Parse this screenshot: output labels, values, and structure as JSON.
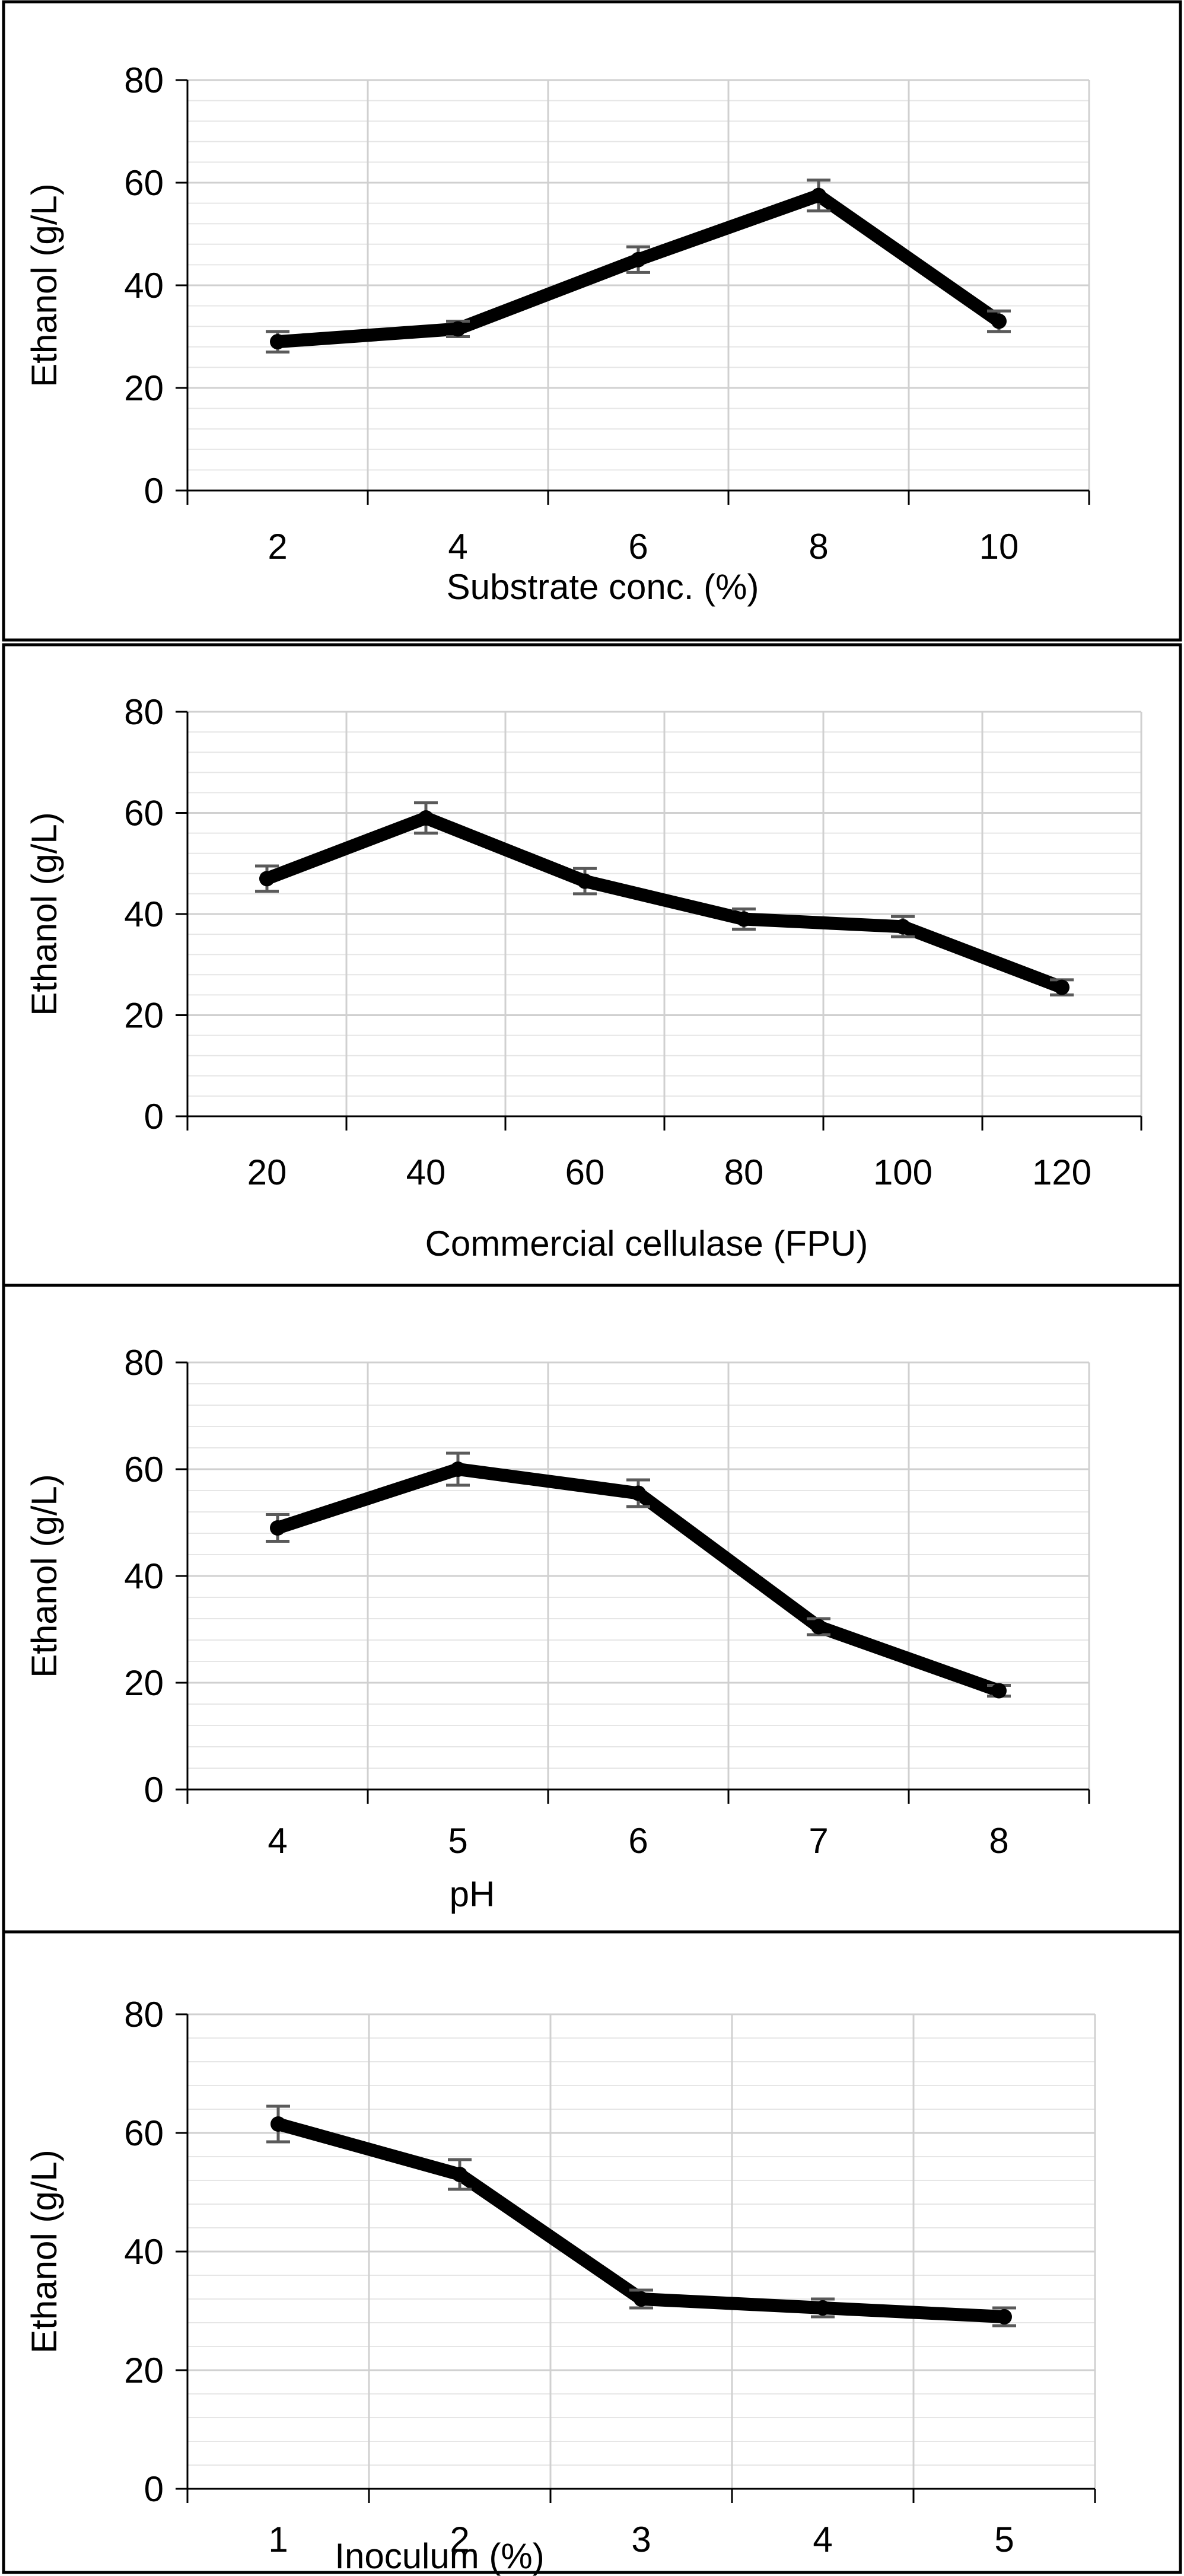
{
  "chart_data": [
    {
      "type": "line",
      "xlabel": "Substrate conc. (%)",
      "ylabel": "Ethanol (g/L)",
      "categories": [
        "2",
        "4",
        "6",
        "8",
        "10"
      ],
      "series": [
        {
          "name": "Ethanol",
          "values": [
            29,
            31.5,
            45,
            57.5,
            33
          ],
          "errors": [
            2,
            1.5,
            2.5,
            3,
            2
          ]
        }
      ],
      "ylim": [
        0,
        80
      ],
      "yticks": [
        "0",
        "20",
        "40",
        "60",
        "80"
      ],
      "minor_step": 4,
      "grid": true
    },
    {
      "type": "line",
      "xlabel": "Commercial cellulase (FPU)",
      "ylabel": "Ethanol (g/L)",
      "categories": [
        "20",
        "40",
        "60",
        "80",
        "100",
        "120"
      ],
      "series": [
        {
          "name": "Ethanol",
          "values": [
            47,
            59,
            46.5,
            39,
            37.5,
            25.5
          ],
          "errors": [
            2.5,
            3,
            2.5,
            2,
            2,
            1.5
          ]
        }
      ],
      "ylim": [
        0,
        80
      ],
      "yticks": [
        "0",
        "20",
        "40",
        "60",
        "80"
      ],
      "minor_step": 4,
      "grid": true
    },
    {
      "type": "line",
      "xlabel": "pH",
      "ylabel": "Ethanol (g/L)",
      "categories": [
        "4",
        "5",
        "6",
        "7",
        "8"
      ],
      "series": [
        {
          "name": "Ethanol",
          "values": [
            49,
            60,
            55.5,
            30.5,
            18.5
          ],
          "errors": [
            2.5,
            3,
            2.5,
            1.5,
            1
          ]
        }
      ],
      "ylim": [
        0,
        80
      ],
      "yticks": [
        "0",
        "20",
        "40",
        "60",
        "80"
      ],
      "minor_step": 4,
      "grid": true
    },
    {
      "type": "line",
      "xlabel": "Inoculum (%)",
      "ylabel": "Ethanol (g/L)",
      "categories": [
        "1",
        "2",
        "3",
        "4",
        "5"
      ],
      "series": [
        {
          "name": "Ethanol",
          "values": [
            61.5,
            53,
            32,
            30.5,
            29
          ],
          "errors": [
            3,
            2.5,
            1.5,
            1.5,
            1.5
          ]
        }
      ],
      "ylim": [
        0,
        80
      ],
      "yticks": [
        "0",
        "20",
        "40",
        "60",
        "80"
      ],
      "minor_step": 4,
      "grid": true
    }
  ]
}
